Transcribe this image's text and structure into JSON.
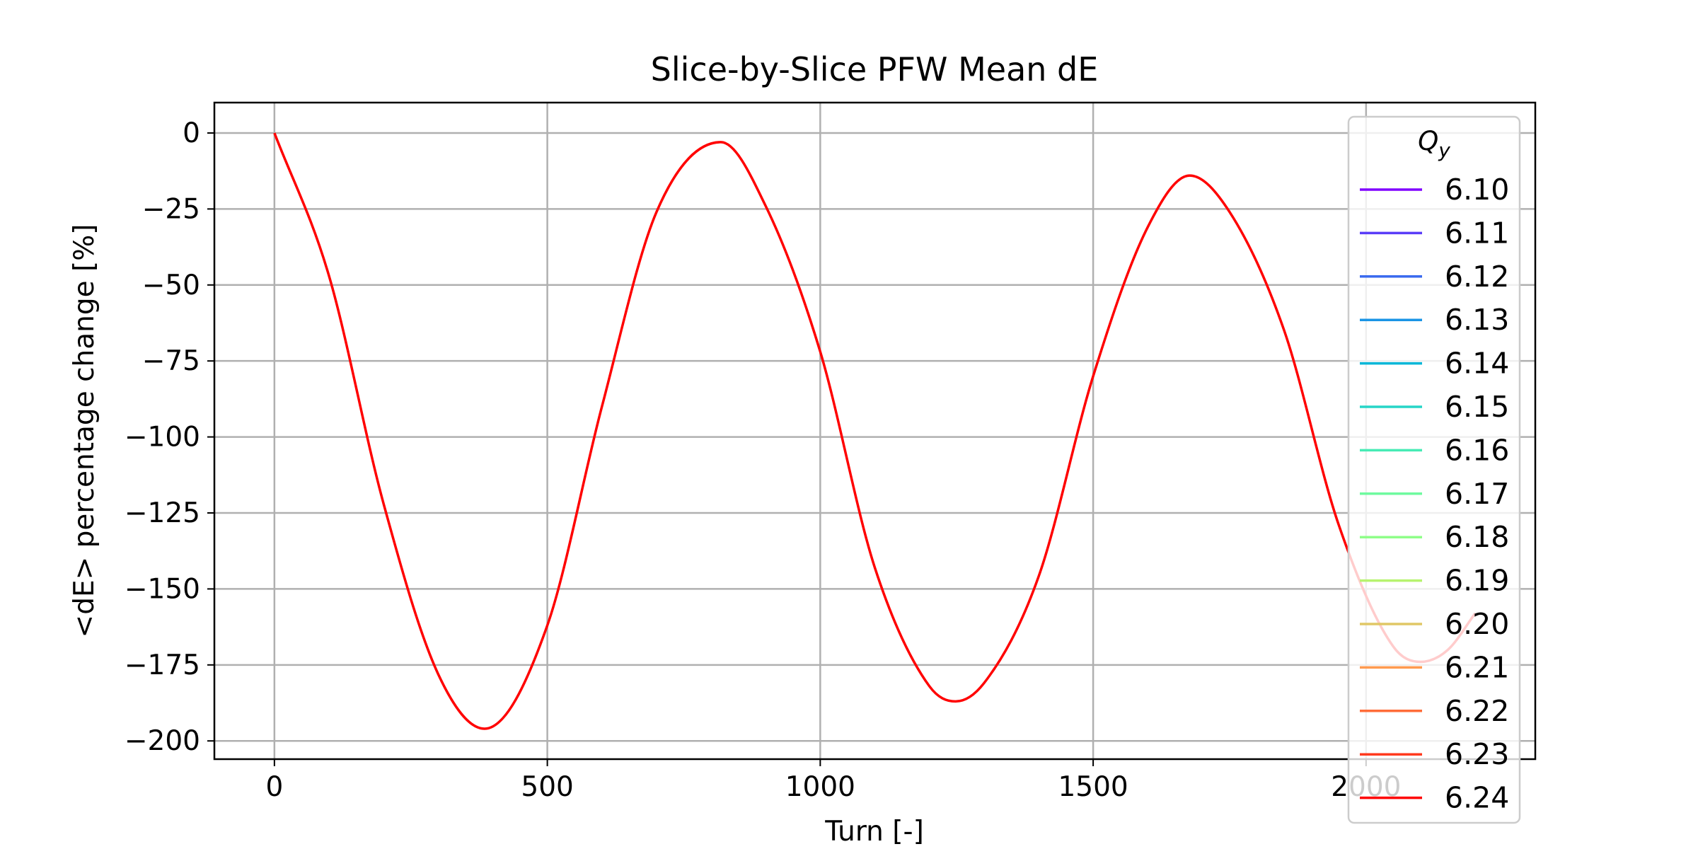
{
  "chart_data": {
    "type": "line",
    "title": "Slice-by-Slice PFW Mean dE",
    "xlabel": "Turn [-]",
    "ylabel": "<dE> percentage change [%]",
    "xlim": [
      -110,
      2310
    ],
    "ylim": [
      -206,
      10
    ],
    "xticks": [
      0,
      500,
      1000,
      1500,
      2000
    ],
    "yticks": [
      0,
      -25,
      -50,
      -75,
      -100,
      -125,
      -150,
      -175,
      -200
    ],
    "grid": true,
    "legend": {
      "title": "Q_y",
      "placement": "right, overlapping plot",
      "entries": [
        "6.10",
        "6.11",
        "6.12",
        "6.13",
        "6.14",
        "6.15",
        "6.16",
        "6.17",
        "6.18",
        "6.19",
        "6.20",
        "6.21",
        "6.22",
        "6.23",
        "6.24"
      ]
    },
    "series": [
      {
        "name": "6.10",
        "color": "#8000ff"
      },
      {
        "name": "6.11",
        "color": "#5a3df8"
      },
      {
        "name": "6.12",
        "color": "#3a6aef"
      },
      {
        "name": "6.13",
        "color": "#1a94e5"
      },
      {
        "name": "6.14",
        "color": "#05b7d8"
      },
      {
        "name": "6.15",
        "color": "#26d5c7"
      },
      {
        "name": "6.16",
        "color": "#46ebb5"
      },
      {
        "name": "6.17",
        "color": "#6ffa9f"
      },
      {
        "name": "6.18",
        "color": "#8ffe88"
      },
      {
        "name": "6.19",
        "color": "#b7f36f"
      },
      {
        "name": "6.20",
        "color": "#e0c766"
      },
      {
        "name": "6.21",
        "color": "#ff9a4f"
      },
      {
        "name": "6.22",
        "color": "#ff6c38"
      },
      {
        "name": "6.23",
        "color": "#ff3a1e"
      },
      {
        "name": "6.24",
        "color": "#ff0000",
        "x": [
          0,
          100,
          200,
          300,
          385,
          500,
          600,
          700,
          818,
          900,
          1000,
          1100,
          1200,
          1248,
          1300,
          1400,
          1500,
          1600,
          1677,
          1750,
          1850,
          1950,
          2050,
          2100,
          2150,
          2200
        ],
        "values": [
          0,
          -47,
          -122,
          -178,
          -196,
          -162,
          -90,
          -26,
          -3,
          -24,
          -72,
          -143,
          -182,
          -187,
          -181,
          -146,
          -80,
          -31,
          -14,
          -26,
          -65,
          -129,
          -169,
          -174,
          -170,
          -158
        ]
      }
    ]
  }
}
